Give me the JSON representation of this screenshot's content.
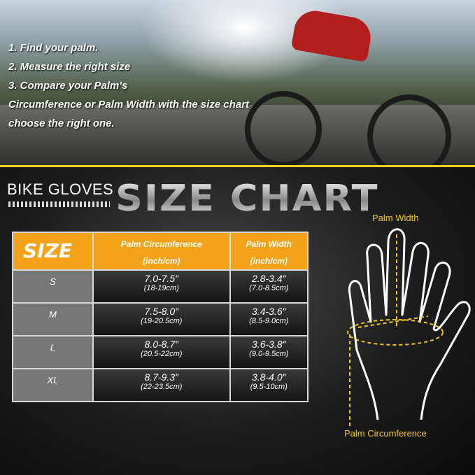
{
  "steps": [
    "1. Find your palm.",
    "2. Measure the right size",
    "3. Compare your Palm's",
    "Circumference or Palm Width with the size chart",
    "choose the right one."
  ],
  "heading": {
    "brand": "BIKE GLOVES",
    "title": "SIZE CHART"
  },
  "table": {
    "headers": {
      "size": "SIZE",
      "circ": "Palm Circumference",
      "circ_unit": "(inch/cm)",
      "width": "Palm Width",
      "width_unit": "(inch/cm)"
    },
    "rows": [
      {
        "size": "S",
        "circ_in": "7.0-7.5″",
        "circ_cm": "(18-19cm)",
        "width_in": "2.8-3.4″",
        "width_cm": "(7.0-8.5cm)"
      },
      {
        "size": "M",
        "circ_in": "7.5-8.0″",
        "circ_cm": "(19-20.5cm)",
        "width_in": "3.4-3.6″",
        "width_cm": "(8.5-9.0cm)"
      },
      {
        "size": "L",
        "circ_in": "8.0-8.7″",
        "circ_cm": "(20.5-22cm)",
        "width_in": "3.6-3.8″",
        "width_cm": "(9.0-9.5cm)"
      },
      {
        "size": "XL",
        "circ_in": "8.7-9.3″",
        "circ_cm": "(22-23.5cm)",
        "width_in": "3.8-4.0″",
        "width_cm": "(9.5-10cm)"
      }
    ]
  },
  "diagram": {
    "palm_width": "Palm Width",
    "palm_circumference": "Palm Circumference"
  },
  "colors": {
    "accent": "#f2a31a",
    "stripe": "#f2d21a",
    "label": "#f2c81a"
  }
}
